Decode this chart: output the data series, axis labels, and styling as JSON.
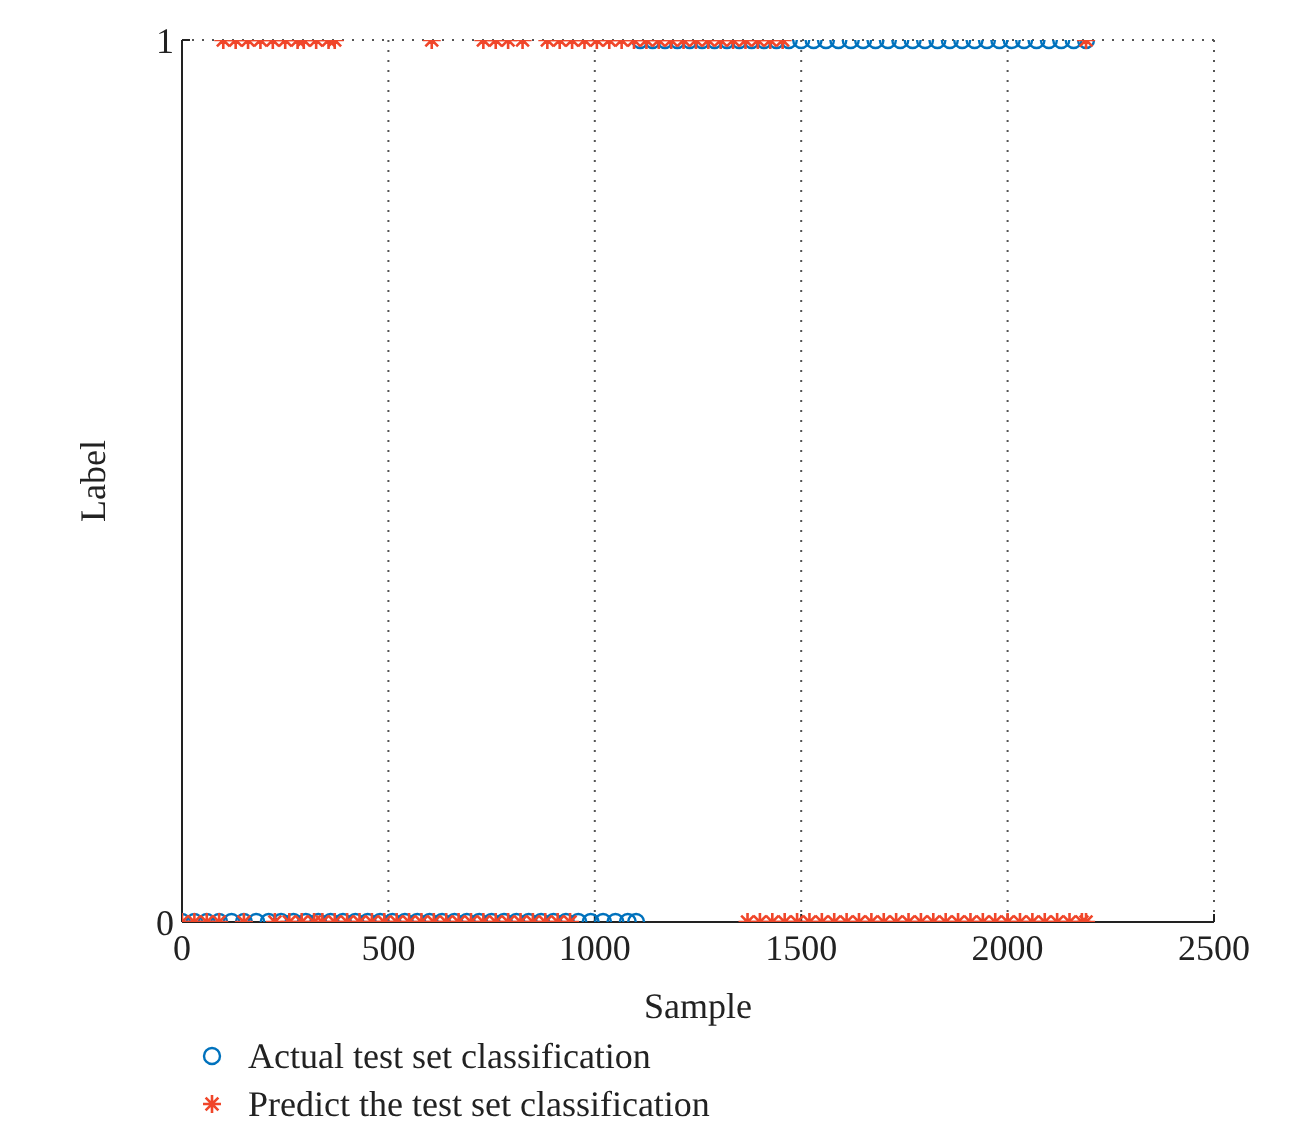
{
  "chart_data": {
    "type": "scatter",
    "xlabel": "Sample",
    "ylabel": "Label",
    "xlim": [
      0,
      2500
    ],
    "xticks": [
      0,
      500,
      1000,
      1500,
      2000,
      2500
    ],
    "ylim": [
      0,
      1
    ],
    "yticks": [
      0,
      1
    ],
    "grid": true,
    "line_style": "dotted",
    "legend": "bottom left",
    "series": [
      {
        "name": "Actual test set classification",
        "color": "#0072bd",
        "marker": "circle",
        "x": [
          0,
          30,
          60,
          90,
          120,
          150,
          180,
          210,
          240,
          270,
          300,
          330,
          360,
          390,
          420,
          450,
          480,
          510,
          540,
          570,
          600,
          630,
          660,
          690,
          720,
          750,
          780,
          810,
          840,
          870,
          900,
          930,
          960,
          990,
          1020,
          1050,
          1080,
          1100,
          1110,
          1140,
          1170,
          1200,
          1230,
          1260,
          1290,
          1320,
          1350,
          1380,
          1410,
          1440,
          1470,
          1500,
          1530,
          1560,
          1590,
          1620,
          1650,
          1680,
          1710,
          1740,
          1770,
          1800,
          1830,
          1860,
          1890,
          1920,
          1950,
          1980,
          2010,
          2040,
          2070,
          2100,
          2130,
          2160,
          2190
        ],
        "values": [
          0,
          0,
          0,
          0,
          0,
          0,
          0,
          0,
          0,
          0,
          0,
          0,
          0,
          0,
          0,
          0,
          0,
          0,
          0,
          0,
          0,
          0,
          0,
          0,
          0,
          0,
          0,
          0,
          0,
          0,
          0,
          0,
          0,
          0,
          0,
          0,
          0,
          0,
          1,
          1,
          1,
          1,
          1,
          1,
          1,
          1,
          1,
          1,
          1,
          1,
          1,
          1,
          1,
          1,
          1,
          1,
          1,
          1,
          1,
          1,
          1,
          1,
          1,
          1,
          1,
          1,
          1,
          1,
          1,
          1,
          1,
          1,
          1,
          1,
          1
        ]
      },
      {
        "name": "Predict the test set classification",
        "color": "#f0462a",
        "marker": "cross",
        "x": [
          0,
          30,
          60,
          90,
          150,
          225,
          260,
          290,
          320,
          340,
          370,
          400,
          430,
          460,
          490,
          520,
          550,
          580,
          610,
          640,
          670,
          700,
          730,
          760,
          790,
          820,
          850,
          880,
          910,
          940,
          1370,
          1400,
          1430,
          1460,
          1490,
          1520,
          1550,
          1580,
          1610,
          1640,
          1670,
          1700,
          1730,
          1760,
          1790,
          1820,
          1850,
          1880,
          1910,
          1940,
          1970,
          2000,
          2030,
          2060,
          2090,
          2120,
          2150,
          2180,
          2190,
          100,
          130,
          160,
          190,
          220,
          250,
          280,
          295,
          325,
          355,
          370,
          605,
          730,
          760,
          790,
          825,
          885,
          915,
          945,
          975,
          1005,
          1035,
          1065,
          1095,
          1125,
          1155,
          1185,
          1215,
          1245,
          1275,
          1305,
          1335,
          1365,
          1395,
          1425,
          1455,
          2190
        ],
        "values": [
          0,
          0,
          0,
          0,
          0,
          0,
          0,
          0,
          0,
          0,
          0,
          0,
          0,
          0,
          0,
          0,
          0,
          0,
          0,
          0,
          0,
          0,
          0,
          0,
          0,
          0,
          0,
          0,
          0,
          0,
          0,
          0,
          0,
          0,
          0,
          0,
          0,
          0,
          0,
          0,
          0,
          0,
          0,
          0,
          0,
          0,
          0,
          0,
          0,
          0,
          0,
          0,
          0,
          0,
          0,
          0,
          0,
          0,
          0,
          1,
          1,
          1,
          1,
          1,
          1,
          1,
          1,
          1,
          1,
          1,
          1,
          1,
          1,
          1,
          1,
          1,
          1,
          1,
          1,
          1,
          1,
          1,
          1,
          1,
          1,
          1,
          1,
          1,
          1,
          1,
          1,
          1,
          1,
          1,
          1,
          1
        ]
      }
    ]
  }
}
